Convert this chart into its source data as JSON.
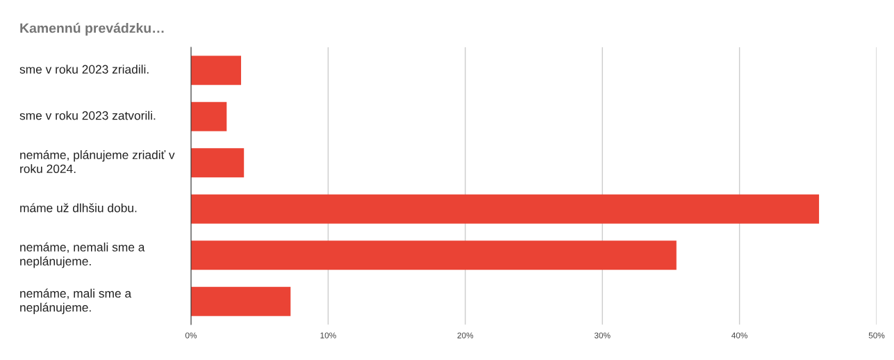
{
  "chart_data": {
    "type": "bar",
    "orientation": "horizontal",
    "title": "Kamennú prevádzku…",
    "categories": [
      "sme v roku 2023 zriadili.",
      "sme v roku 2023 zatvorili.",
      "nemáme, plánujeme zriadiť v roku 2024.",
      "máme už dlhšiu dobu.",
      "nemáme, nemali sme a neplánujeme.",
      "nemáme, mali sme a neplánujeme."
    ],
    "values": [
      3.65,
      2.6,
      3.86,
      45.8,
      35.4,
      7.26
    ],
    "color": "#ea4335",
    "xlim": [
      0,
      50
    ],
    "xticks": [
      {
        "value": 0,
        "label": "0%"
      },
      {
        "value": 10,
        "label": "10%"
      },
      {
        "value": 20,
        "label": "20%"
      },
      {
        "value": 30,
        "label": "30%"
      },
      {
        "value": 40,
        "label": "40%"
      },
      {
        "value": 50,
        "label": "50%"
      }
    ],
    "grid": "x",
    "legend": false
  }
}
